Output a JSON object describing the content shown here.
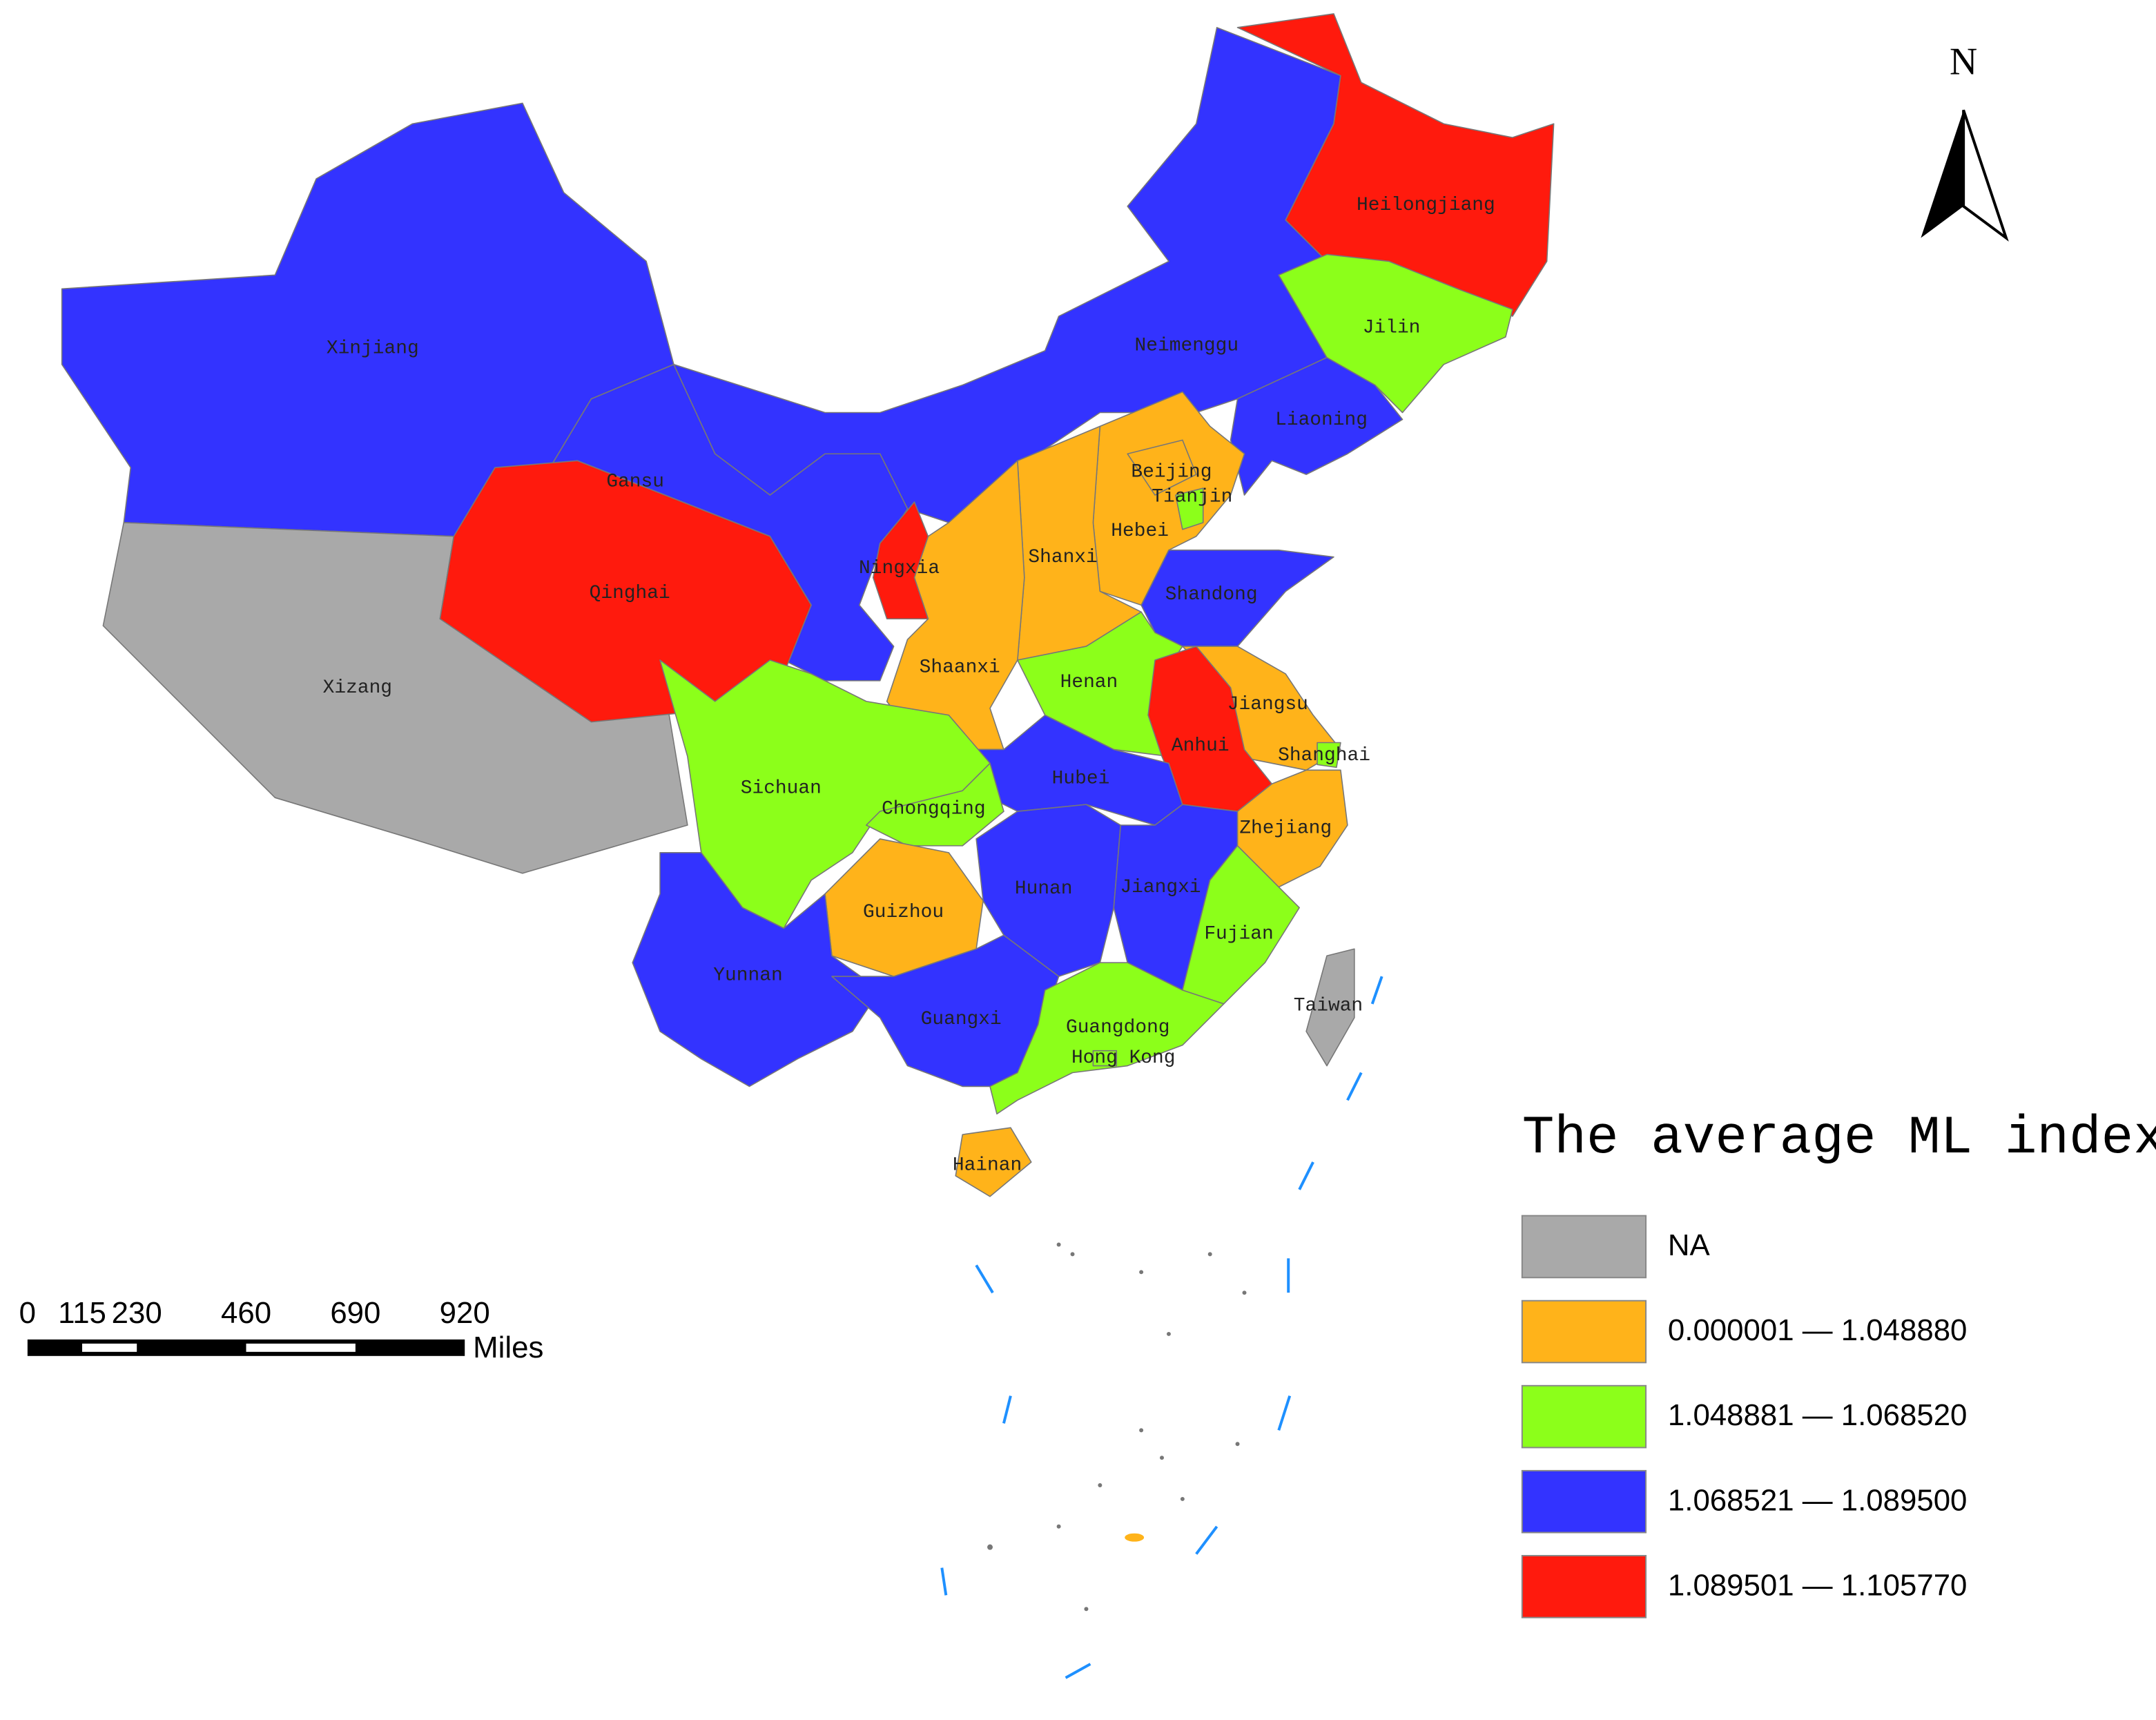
{
  "map": {
    "title": "The average ML index",
    "north": "N",
    "scale_bar": {
      "ticks": [
        0,
        115,
        230,
        460,
        690,
        920
      ],
      "unit": "Miles"
    },
    "legend": [
      {
        "label": "NA",
        "color": "#a9a9a9"
      },
      {
        "label": "0.000001 — 1.048880",
        "color": "#ffb31a"
      },
      {
        "label": "1.048881 — 1.068520",
        "color": "#8cff1a"
      },
      {
        "label": "1.068521 — 1.089500",
        "color": "#3333ff"
      },
      {
        "label": "1.089501 — 1.105770",
        "color": "#ff1a0d"
      }
    ],
    "provinces": [
      {
        "name": "Neimenggu",
        "class": 3
      },
      {
        "name": "Gansu",
        "class": 3
      },
      {
        "name": "Xinjiang",
        "class": 3
      },
      {
        "name": "Xizang",
        "class": 0
      },
      {
        "name": "Qinghai",
        "class": 4
      },
      {
        "name": "Heilongjiang",
        "class": 4
      },
      {
        "name": "Jilin",
        "class": 2
      },
      {
        "name": "Liaoning",
        "class": 3
      },
      {
        "name": "Hebei",
        "class": 1
      },
      {
        "name": "Beijing",
        "class": 1
      },
      {
        "name": "Tianjin",
        "class": 2
      },
      {
        "name": "Shanxi",
        "class": 1
      },
      {
        "name": "Shaanxi",
        "class": 1
      },
      {
        "name": "Ningxia",
        "class": 4
      },
      {
        "name": "Shandong",
        "class": 3
      },
      {
        "name": "Henan",
        "class": 2
      },
      {
        "name": "Jiangsu",
        "class": 1
      },
      {
        "name": "Anhui",
        "class": 4
      },
      {
        "name": "Shanghai",
        "class": 2
      },
      {
        "name": "Zhejiang",
        "class": 1
      },
      {
        "name": "Hubei",
        "class": 3
      },
      {
        "name": "Sichuan",
        "class": 2
      },
      {
        "name": "Chongqing",
        "class": 2
      },
      {
        "name": "Guizhou",
        "class": 1
      },
      {
        "name": "Hunan",
        "class": 3
      },
      {
        "name": "Jiangxi",
        "class": 3
      },
      {
        "name": "Fujian",
        "class": 2
      },
      {
        "name": "Yunnan",
        "class": 3
      },
      {
        "name": "Guangxi",
        "class": 3
      },
      {
        "name": "Guangdong",
        "class": 2
      },
      {
        "name": "Hong Kong",
        "class": 2
      },
      {
        "name": "Hainan",
        "class": 1
      },
      {
        "name": "Taiwan",
        "class": 0
      }
    ]
  }
}
